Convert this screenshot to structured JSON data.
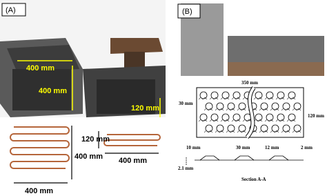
{
  "panel_a": {
    "label": "(A)",
    "photo_labels": [
      "400 mm",
      "400 mm",
      "120 mm"
    ],
    "diagram_labels": [
      "120 mm",
      "400 mm",
      "400 mm",
      "400 mm"
    ]
  },
  "panel_b": {
    "label": "(B)",
    "dimensions": [
      "350 mm",
      "30 mm",
      "120 mm"
    ],
    "section_dimensions": [
      "10 mm",
      "30 mm",
      "12 mm",
      "2 mm",
      "2.1 mm"
    ],
    "section_title": "Section A-A"
  }
}
